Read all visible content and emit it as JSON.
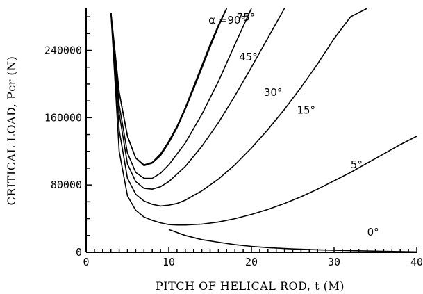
{
  "chart_data": {
    "type": "line",
    "xlabel": "PITCH OF HELICAL ROD, t (M)",
    "ylabel": "CRITICAL LOAD, Pcr (N)",
    "xlim": [
      0,
      40
    ],
    "ylim": [
      0,
      290000
    ],
    "x_ticks": [
      0,
      10,
      20,
      30,
      40
    ],
    "y_ticks": [
      0,
      80000,
      160000,
      240000
    ],
    "x_tick_labels": [
      "0",
      "10",
      "20",
      "30",
      "40"
    ],
    "y_tick_labels": [
      "0",
      "80000",
      "160000",
      "240000"
    ],
    "grid": false,
    "series": [
      {
        "name": "α =90°",
        "x": [
          3.0,
          4.0,
          5.0,
          6.0,
          7.0,
          8.0,
          9.0,
          10.0,
          11.0,
          12.0,
          13.0,
          14.0,
          15.0,
          16.0,
          17.0
        ],
        "y": [
          285000,
          190000,
          138000,
          112000,
          104000,
          107000,
          117000,
          132000,
          150000,
          172000,
          197000,
          222000,
          247000,
          270000,
          290000
        ]
      },
      {
        "name": "75°",
        "x": [
          3.0,
          4.0,
          5.0,
          6.0,
          7.0,
          8.0,
          9.0,
          10.0,
          11.0,
          12.0,
          13.0,
          14.0,
          15.0,
          16.0,
          17.0
        ],
        "y": [
          285000,
          190000,
          138000,
          112000,
          103000,
          106000,
          115000,
          130000,
          148000,
          170000,
          194000,
          219000,
          244000,
          268000,
          290000
        ]
      },
      {
        "name": "45°",
        "x": [
          3.0,
          4.0,
          5.0,
          6.0,
          7.0,
          8.0,
          9.0,
          10.0,
          12.0,
          14.0,
          16.0,
          18.0,
          20.0
        ],
        "y": [
          285000,
          175000,
          118000,
          95000,
          88000,
          88000,
          94000,
          104000,
          130000,
          164000,
          203000,
          247000,
          290000
        ]
      },
      {
        "name": "30°",
        "x": [
          3.0,
          4.0,
          5.0,
          6.0,
          7.0,
          8.0,
          9.0,
          10.0,
          12.0,
          14.0,
          16.0,
          18.0,
          20.0,
          22.0,
          24.0
        ],
        "y": [
          285000,
          165000,
          105000,
          84000,
          76000,
          75000,
          78000,
          84000,
          102000,
          126000,
          154000,
          186000,
          220000,
          255000,
          290000
        ]
      },
      {
        "name": "15°",
        "x": [
          3.0,
          4.0,
          5.0,
          6.0,
          7.0,
          8.0,
          9.0,
          10.0,
          11.0,
          12.0,
          14.0,
          16.0,
          18.0,
          20.0,
          22.0,
          24.0,
          26.0,
          28.0,
          30.0,
          32.0,
          34.0
        ],
        "y": [
          285000,
          145000,
          88000,
          69000,
          61000,
          57000,
          55000,
          56000,
          58000,
          62000,
          73000,
          87000,
          104000,
          124000,
          146000,
          170000,
          196000,
          224000,
          254000,
          280000,
          290000
        ]
      },
      {
        "name": "5°",
        "x": [
          3.0,
          4.0,
          5.0,
          6.0,
          7.0,
          8.0,
          9.0,
          10.0,
          11.0,
          12.0,
          13.0,
          14.0,
          16.0,
          18.0,
          20.0,
          22.0,
          24.0,
          26.0,
          28.0,
          30.0,
          32.0,
          34.0,
          36.0,
          38.0,
          40.0
        ],
        "y": [
          285000,
          120000,
          67000,
          50000,
          42000,
          38000,
          35000,
          33000,
          32500,
          32500,
          33000,
          33500,
          36000,
          40000,
          45000,
          51000,
          58000,
          66000,
          75000,
          85000,
          95000,
          106000,
          117000,
          128000,
          138000
        ]
      },
      {
        "name": "0°",
        "x": [
          10.0,
          12.0,
          14.0,
          16.0,
          18.0,
          20.0,
          22.0,
          25.0,
          28.0,
          32.0,
          36.0,
          40.0
        ],
        "y": [
          27000,
          20000,
          15000,
          12000,
          9000,
          7000,
          5500,
          4000,
          3000,
          2000,
          1200,
          500
        ]
      }
    ],
    "labels": [
      {
        "text": "α =90°",
        "x": 14.8,
        "y": 272000
      },
      {
        "text": "75°",
        "x": 18.2,
        "y": 275000
      },
      {
        "text": "45°",
        "x": 18.5,
        "y": 228000
      },
      {
        "text": "30°",
        "x": 21.5,
        "y": 186000
      },
      {
        "text": "15°",
        "x": 25.5,
        "y": 165000
      },
      {
        "text": "5°",
        "x": 32.0,
        "y": 100000
      },
      {
        "text": "0°",
        "x": 34.0,
        "y": 20000
      }
    ]
  }
}
